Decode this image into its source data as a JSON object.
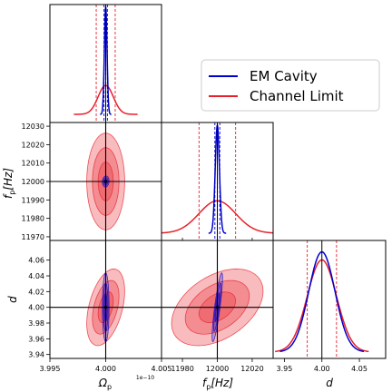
{
  "chart_data": {
    "type": "corner",
    "parameters": [
      {
        "key": "omega",
        "label": "Ω",
        "label_sub": "p",
        "truth": 4.0,
        "lim": [
          3.995,
          4.005
        ],
        "ticks": [
          "3.995",
          "4.000",
          "4.005"
        ],
        "tick_values": [
          3.995,
          4.0,
          4.005
        ],
        "offset_text": "1e−10"
      },
      {
        "key": "fp",
        "label": "f",
        "label_sub": "p",
        "label_suffix": "[Hz]",
        "truth": 12000,
        "lim": [
          11968,
          12032
        ],
        "ticks": [
          "11980",
          "12000",
          "12020"
        ],
        "tick_values": [
          11980,
          12000,
          12020
        ],
        "yticks": [
          "11970",
          "11980",
          "11990",
          "12000",
          "12010",
          "12020",
          "12030"
        ],
        "ytick_values": [
          11970,
          11980,
          11990,
          12000,
          12010,
          12020,
          12030
        ]
      },
      {
        "key": "d",
        "label": "d",
        "truth": 4.0,
        "lim": [
          3.935,
          4.085
        ],
        "ticks": [
          "3.95",
          "4.00",
          "4.05"
        ],
        "tick_values": [
          3.95,
          4.0,
          4.05
        ],
        "yticks": [
          "3.94",
          "3.96",
          "3.98",
          "4.00",
          "4.02",
          "4.04",
          "4.06"
        ],
        "ytick_values": [
          3.94,
          3.96,
          3.98,
          4.0,
          4.02,
          4.04,
          4.06
        ]
      }
    ],
    "series": [
      {
        "name": "EM Cavity",
        "color": "#0000cc",
        "mean": {
          "omega": 4.0,
          "fp": 12000,
          "d": 4.0
        },
        "sigma": {
          "omega": 0.00012,
          "fp": 1.2,
          "d": 0.0175
        },
        "corr": {
          "fp_omega": 0.1,
          "d_omega": 0.0,
          "d_fp": 0.85
        },
        "quantile_lines": {
          "omega": [
            3.99985,
            4.00015
          ],
          "fp": [
            11998.6,
            12001.4
          ]
        }
      },
      {
        "name": "Channel Limit",
        "color": "#e8202a",
        "mean": {
          "omega": 4.0,
          "fp": 12000,
          "d": 4.0
        },
        "sigma": {
          "omega": 0.00068,
          "fp": 10.5,
          "d": 0.0195
        },
        "corr": {
          "fp_omega": 0.0,
          "d_omega": 0.42,
          "d_fp": 0.42
        },
        "quantile_lines": {
          "omega": [
            3.99915,
            4.00085
          ],
          "fp": [
            11989.5,
            12010.5
          ],
          "d": [
            3.9805,
            4.0195
          ]
        }
      }
    ],
    "d_peaks": {
      "EM Cavity": 1.0,
      "Channel Limit": 0.92
    },
    "legend": {
      "entries": [
        "EM Cavity",
        "Channel Limit"
      ],
      "placement": "top-right"
    }
  }
}
